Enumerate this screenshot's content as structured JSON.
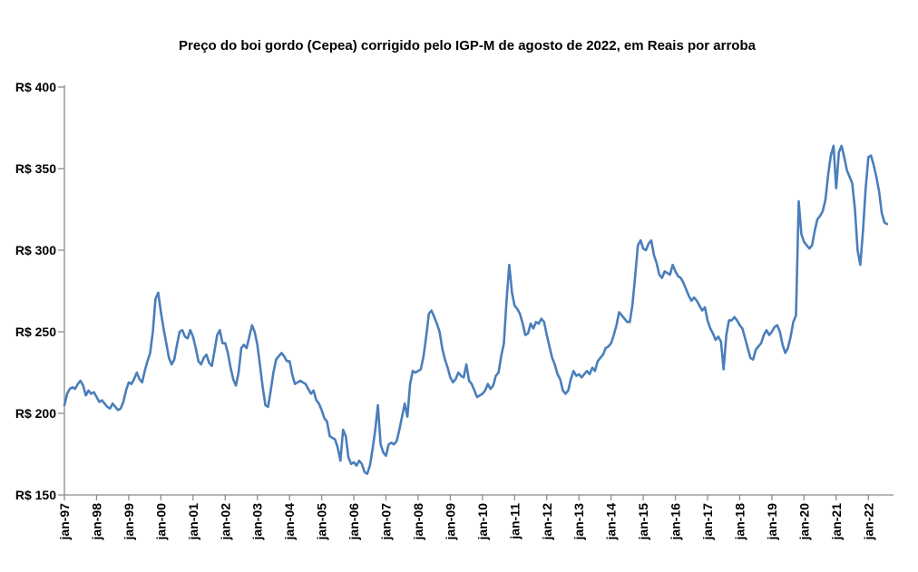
{
  "window": {
    "background_color": "#ffffff"
  },
  "chart_data": {
    "type": "line",
    "title": "Preço do boi gordo (Cepea) corrigido pelo IGP-M de agosto de 2022, em Reais por arroba",
    "series": [
      {
        "name": "Preço do boi gordo (Cepea) corrigido, R$/arroba",
        "start_month": "jan-97",
        "end_month": "ago-22",
        "frequency": "monthly",
        "values": [
          205,
          212,
          215,
          216,
          215,
          218,
          220,
          217,
          211,
          214,
          212,
          213,
          210,
          207,
          208,
          206,
          204,
          203,
          206,
          204,
          202,
          203,
          207,
          214,
          219,
          218,
          221,
          225,
          221,
          219,
          226,
          232,
          237,
          250,
          270,
          274,
          262,
          252,
          243,
          234,
          230,
          233,
          242,
          250,
          251,
          247,
          246,
          251,
          247,
          240,
          232,
          230,
          234,
          236,
          231,
          229,
          238,
          248,
          251,
          243,
          243,
          237,
          228,
          221,
          217,
          225,
          240,
          242,
          240,
          247,
          254,
          250,
          242,
          229,
          216,
          205,
          204,
          214,
          225,
          233,
          235,
          237,
          235,
          232,
          232,
          224,
          218,
          219,
          220,
          219,
          218,
          215,
          212,
          214,
          208,
          206,
          202,
          197,
          195,
          186,
          185,
          184,
          179,
          171,
          190,
          186,
          173,
          169,
          170,
          168,
          171,
          169,
          164,
          163,
          168,
          178,
          190,
          205,
          181,
          176,
          174,
          181,
          182,
          181,
          183,
          190,
          198,
          206,
          198,
          218,
          226,
          225,
          226,
          227,
          235,
          247,
          261,
          263,
          259,
          255,
          250,
          240,
          233,
          228,
          222,
          219,
          221,
          225,
          223,
          222,
          230,
          220,
          218,
          214,
          210,
          211,
          212,
          214,
          218,
          215,
          217,
          223,
          225,
          235,
          243,
          269,
          291,
          274,
          266,
          264,
          261,
          255,
          248,
          249,
          255,
          252,
          256,
          255,
          258,
          256,
          248,
          241,
          234,
          230,
          224,
          221,
          214,
          212,
          214,
          221,
          226,
          223,
          224,
          222,
          224,
          226,
          224,
          228,
          226,
          232,
          234,
          236,
          240,
          241,
          243,
          248,
          254,
          262,
          260,
          258,
          256,
          256,
          267,
          284,
          303,
          306,
          301,
          300,
          304,
          306,
          297,
          292,
          285,
          283,
          287,
          286,
          285,
          291,
          287,
          284,
          283,
          280,
          276,
          272,
          269,
          271,
          269,
          266,
          263,
          265,
          257,
          252,
          249,
          245,
          247,
          244,
          227,
          248,
          257,
          257,
          259,
          257,
          254,
          252,
          246,
          240,
          234,
          233,
          239,
          241,
          243,
          248,
          251,
          248,
          250,
          253,
          254,
          250,
          242,
          237,
          240,
          247,
          256,
          260,
          330,
          310,
          305,
          303,
          301,
          303,
          312,
          319,
          321,
          324,
          331,
          346,
          358,
          364,
          338,
          360,
          364,
          357,
          349,
          345,
          341,
          325,
          300,
          291,
          312,
          338,
          357,
          358,
          352,
          345,
          336,
          323,
          317,
          316
        ]
      }
    ],
    "x_tick_labels": [
      "jan-97",
      "jan-98",
      "jan-99",
      "jan-00",
      "jan-01",
      "jan-02",
      "jan-03",
      "jan-04",
      "jan-05",
      "jan-06",
      "jan-07",
      "jan-08",
      "jan-09",
      "jan-10",
      "jan-11",
      "jan-12",
      "jan-13",
      "jan-14",
      "jan-15",
      "jan-16",
      "jan-17",
      "jan-18",
      "jan-19",
      "jan-20",
      "jan-21",
      "jan-22"
    ],
    "y_ticks": [
      150,
      200,
      250,
      300,
      350,
      400
    ],
    "y_tick_labels": [
      "R$ 150",
      "R$ 200",
      "R$ 250",
      "R$ 300",
      "R$ 350",
      "R$ 400"
    ],
    "ylim": [
      150,
      400
    ],
    "xlabel": "",
    "ylabel": "",
    "grid": false,
    "legend_position": "none",
    "line_color": "#4A7EBB",
    "axis_color": "#8C8C8C",
    "text_color": "#000000"
  }
}
